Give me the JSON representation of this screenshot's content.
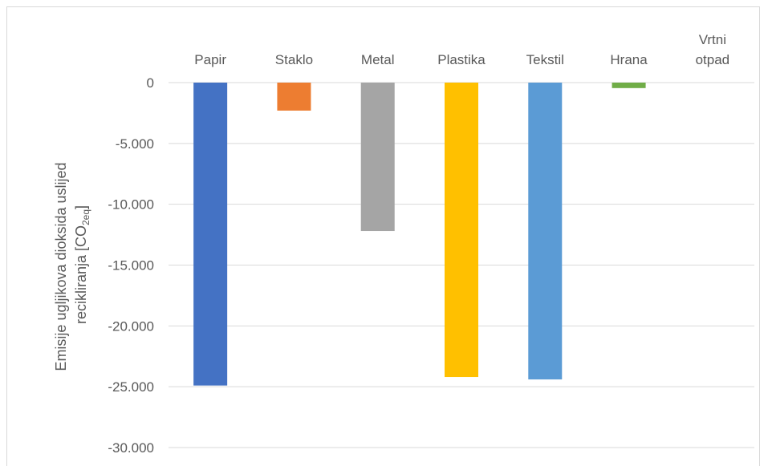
{
  "chart_data": {
    "type": "bar",
    "categories": [
      [
        "Papir"
      ],
      [
        "Staklo"
      ],
      [
        "Metal"
      ],
      [
        "Plastika"
      ],
      [
        "Tekstil"
      ],
      [
        "Hrana"
      ],
      [
        "Vrtni",
        "otpad"
      ]
    ],
    "values": [
      -24900,
      -2300,
      -12200,
      -24200,
      -24400,
      -450,
      0
    ],
    "colors": [
      "#4472c4",
      "#ed7d31",
      "#a5a5a5",
      "#ffc000",
      "#5b9bd5",
      "#70ad47",
      "#264478"
    ],
    "ylim": [
      -30000,
      0
    ],
    "yticks": [
      0,
      -5000,
      -10000,
      -15000,
      -20000,
      -25000,
      -30000
    ],
    "ytick_labels": [
      "0",
      "-5.000",
      "-10.000",
      "-15.000",
      "-20.000",
      "-25.000",
      "-30.000"
    ],
    "ylabel_line1": "Emisije ugljikova dioksida uslijed",
    "ylabel_line2_main": "recikliranja [CO",
    "ylabel_line2_sub": "2eq",
    "ylabel_line2_end": "]",
    "grid": true
  }
}
